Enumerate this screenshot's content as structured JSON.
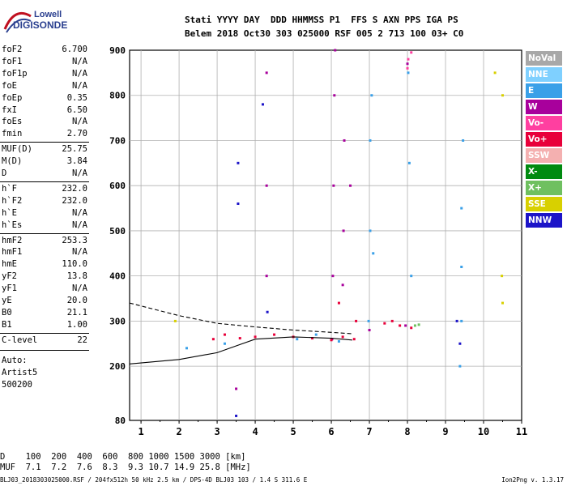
{
  "logo": {
    "line1": "Lowell",
    "line2": "DIGISONDE"
  },
  "header": {
    "labels": "Stati YYYY DAY  DDD HHMMSS P1  FFS S AXN PPS IGA PS",
    "values": "Belem 2018 Oct30 303 025000 RSF 005 2 713 100 03+ C0"
  },
  "params": [
    {
      "key": "foF2",
      "value": "6.700"
    },
    {
      "key": "foF1",
      "value": "N/A"
    },
    {
      "key": "foF1p",
      "value": "N/A"
    },
    {
      "key": "foE",
      "value": "N/A"
    },
    {
      "key": "foEp",
      "value": "0.35"
    },
    {
      "key": "fxI",
      "value": "6.50"
    },
    {
      "key": "foEs",
      "value": "N/A"
    },
    {
      "key": "fmin",
      "value": "2.70"
    },
    {
      "key": "MUF(D)",
      "value": "25.75"
    },
    {
      "key": "M(D)",
      "value": "3.84"
    },
    {
      "key": "D",
      "value": "N/A"
    },
    {
      "key": "h`F",
      "value": "232.0"
    },
    {
      "key": "h`F2",
      "value": "232.0"
    },
    {
      "key": "h`E",
      "value": "N/A"
    },
    {
      "key": "h`Es",
      "value": "N/A"
    },
    {
      "key": "hmF2",
      "value": "253.3"
    },
    {
      "key": "hmF1",
      "value": "N/A"
    },
    {
      "key": "hmE",
      "value": "110.0"
    },
    {
      "key": "yF2",
      "value": "13.8"
    },
    {
      "key": "yF1",
      "value": "N/A"
    },
    {
      "key": "yE",
      "value": "20.0"
    },
    {
      "key": "B0",
      "value": "21.1"
    },
    {
      "key": "B1",
      "value": "1.00"
    },
    {
      "key": "C-level",
      "value": "22"
    }
  ],
  "auto": {
    "line1": "Auto:",
    "line2": "Artist5",
    "line3": "500200"
  },
  "legend": [
    {
      "label": "NoVal",
      "color": "#a8a8a8"
    },
    {
      "label": "NNE",
      "color": "#7fd0ff"
    },
    {
      "label": "E",
      "color": "#3aa0e8"
    },
    {
      "label": "W",
      "color": "#a8009c"
    },
    {
      "label": "Vo-",
      "color": "#ff3fa0"
    },
    {
      "label": "Vo+",
      "color": "#e8003a"
    },
    {
      "label": "SSW",
      "color": "#f4b0b0"
    },
    {
      "label": "X-",
      "color": "#008a10"
    },
    {
      "label": "X+",
      "color": "#6fc060"
    },
    {
      "label": "SSE",
      "color": "#d8d000"
    },
    {
      "label": "NNW",
      "color": "#1c14c8"
    }
  ],
  "dtable": {
    "row1": "D    100  200  400  600  800 1000 1500 3000 [km]",
    "row2": "MUF  7.1  7.2  7.6  8.3  9.3 10.7 14.9 25.8 [MHz]"
  },
  "footer": {
    "left": "BLJ03_2018303025000.RSF / 204fx512h 50 kHz 2.5 km / DPS-4D BLJ03 103 / 1.4 S 311.6 E",
    "right": "Ion2Png v. 1.3.17"
  },
  "chart_data": {
    "type": "scatter",
    "title": "",
    "xlabel": "",
    "ylabel": "",
    "xlim": [
      0.7,
      11.0
    ],
    "ylim": [
      80,
      900
    ],
    "x_ticks": [
      1,
      2,
      3,
      4,
      5,
      6,
      7,
      8,
      9,
      10,
      11
    ],
    "y_ticks": [
      80,
      200,
      300,
      400,
      500,
      600,
      700,
      800,
      900
    ],
    "grid": true,
    "series": [
      {
        "name": "E",
        "color": "#3aa0e8",
        "points": [
          [
            6.98,
            300
          ],
          [
            7.02,
            500
          ],
          [
            7.02,
            700
          ],
          [
            7.06,
            800
          ],
          [
            7.1,
            450
          ],
          [
            8.02,
            850
          ],
          [
            8.05,
            650
          ],
          [
            8.1,
            400
          ],
          [
            9.38,
            200
          ],
          [
            9.42,
            300
          ],
          [
            9.42,
            550
          ],
          [
            9.46,
            700
          ],
          [
            9.42,
            420
          ],
          [
            5.1,
            260
          ],
          [
            5.6,
            270
          ],
          [
            6.2,
            255
          ],
          [
            2.2,
            240
          ],
          [
            3.2,
            250
          ]
        ]
      },
      {
        "name": "W",
        "color": "#a8009c",
        "points": [
          [
            6.02,
            260
          ],
          [
            6.04,
            400
          ],
          [
            6.06,
            600
          ],
          [
            6.08,
            800
          ],
          [
            6.1,
            900
          ],
          [
            6.3,
            380
          ],
          [
            6.32,
            500
          ],
          [
            6.34,
            700
          ],
          [
            6.5,
            600
          ],
          [
            7.0,
            280
          ],
          [
            7.95,
            290
          ],
          [
            8.0,
            870
          ],
          [
            3.5,
            150
          ],
          [
            4.3,
            400
          ],
          [
            4.3,
            600
          ],
          [
            4.3,
            850
          ]
        ]
      },
      {
        "name": "Vo+",
        "color": "#e8003a",
        "points": [
          [
            2.9,
            260
          ],
          [
            3.2,
            270
          ],
          [
            3.6,
            262
          ],
          [
            4.0,
            265
          ],
          [
            4.5,
            270
          ],
          [
            5.0,
            265
          ],
          [
            5.5,
            262
          ],
          [
            6.0,
            258
          ],
          [
            6.3,
            265
          ],
          [
            6.6,
            260
          ],
          [
            6.65,
            300
          ],
          [
            6.2,
            340
          ],
          [
            7.4,
            295
          ],
          [
            7.6,
            300
          ],
          [
            7.8,
            290
          ],
          [
            8.1,
            285
          ]
        ]
      },
      {
        "name": "NNW",
        "color": "#1c14c8",
        "points": [
          [
            3.55,
            560
          ],
          [
            3.55,
            650
          ],
          [
            4.2,
            780
          ],
          [
            4.32,
            320
          ],
          [
            3.5,
            90
          ],
          [
            9.3,
            300
          ],
          [
            9.38,
            250
          ]
        ]
      },
      {
        "name": "SSE",
        "color": "#d8d000",
        "points": [
          [
            10.3,
            850
          ],
          [
            10.5,
            800
          ],
          [
            10.48,
            400
          ],
          [
            10.5,
            340
          ],
          [
            1.9,
            300
          ]
        ]
      },
      {
        "name": "X+",
        "color": "#6fc060",
        "points": [
          [
            8.2,
            290
          ],
          [
            8.3,
            292
          ]
        ]
      },
      {
        "name": "Vo-",
        "color": "#ff3fa0",
        "points": [
          [
            8.02,
            880
          ],
          [
            8.1,
            895
          ],
          [
            8.0,
            860
          ]
        ]
      }
    ],
    "lines": [
      {
        "name": "dashed",
        "style": "dashed",
        "points": [
          [
            0.7,
            340
          ],
          [
            2,
            312
          ],
          [
            3,
            295
          ],
          [
            4,
            287
          ],
          [
            5,
            280
          ],
          [
            6,
            275
          ],
          [
            6.55,
            272
          ]
        ]
      },
      {
        "name": "solid",
        "style": "solid",
        "points": [
          [
            0.7,
            205
          ],
          [
            2,
            215
          ],
          [
            3,
            230
          ],
          [
            3.5,
            245
          ],
          [
            4,
            260
          ],
          [
            5,
            265
          ],
          [
            6,
            262
          ],
          [
            6.55,
            258
          ]
        ]
      }
    ]
  }
}
